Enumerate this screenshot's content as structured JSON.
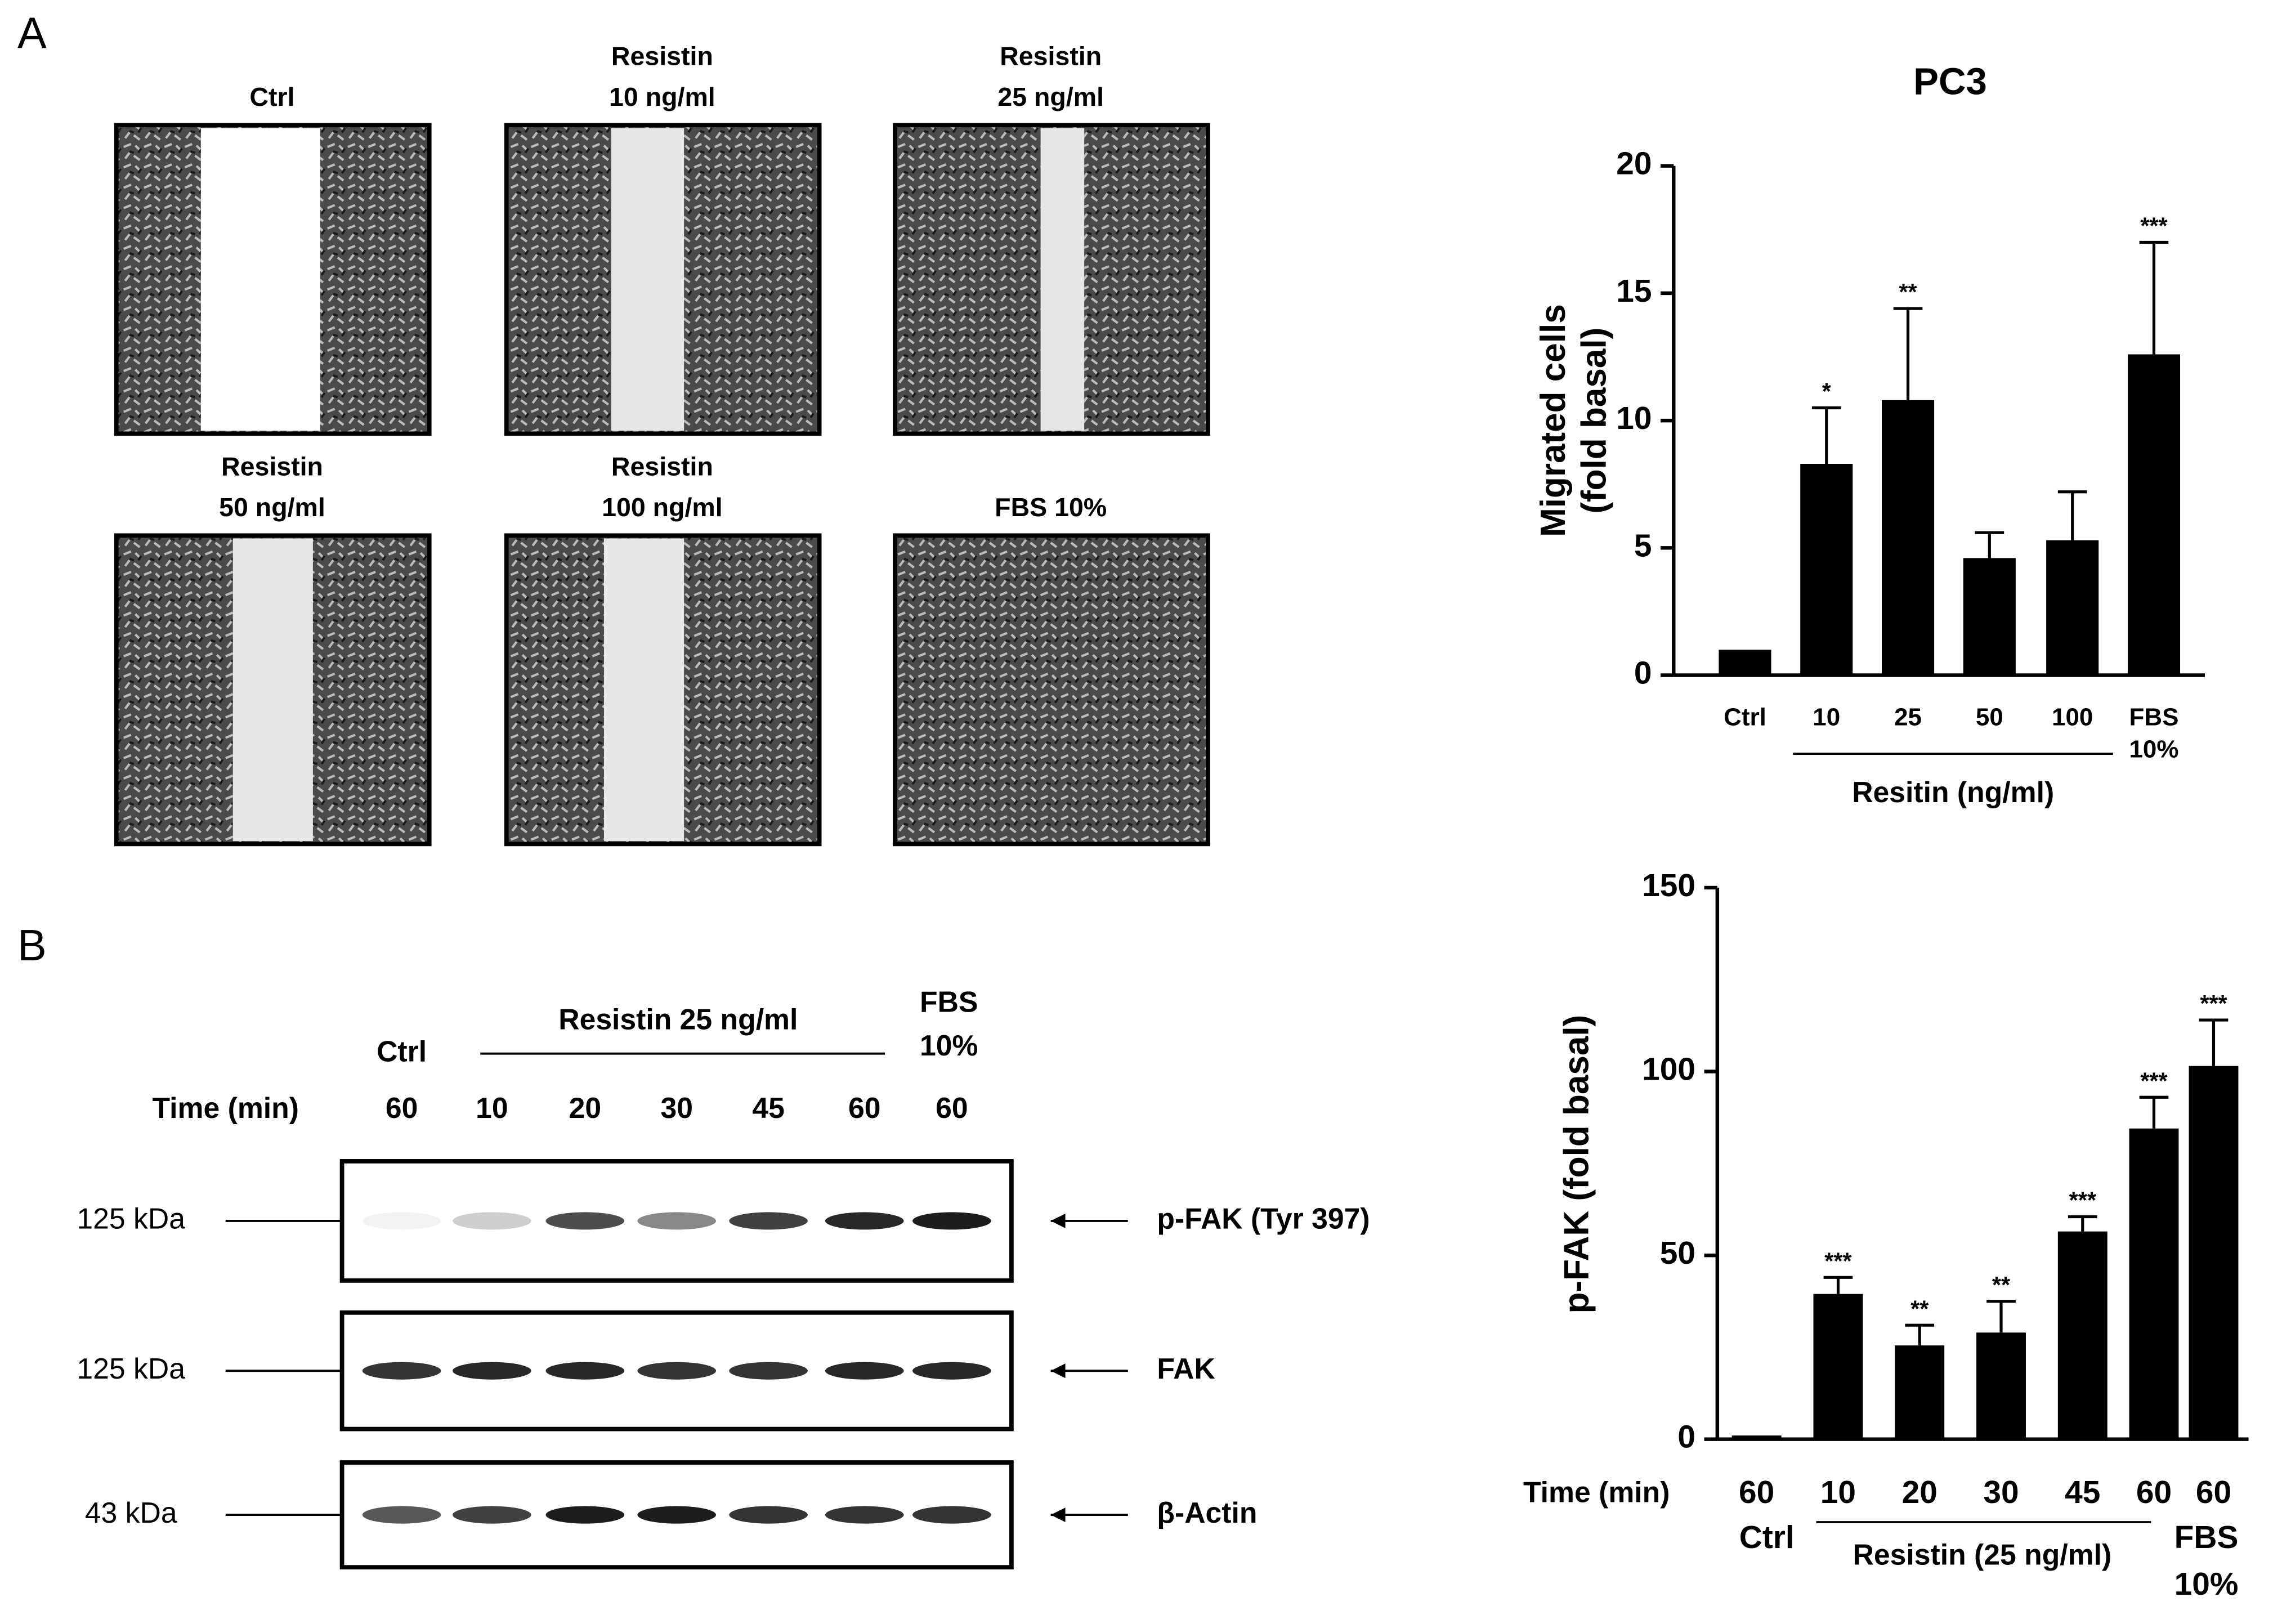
{
  "panels": [
    "A",
    "B"
  ],
  "micrographs": [
    [
      "Ctrl"
    ],
    [
      "Resistin",
      "10 ng/ml"
    ],
    [
      "Resistin",
      "25 ng/ml"
    ],
    [
      "Resistin",
      "50 ng/ml"
    ],
    [
      "Resistin",
      "100 ng/ml"
    ],
    [
      "FBS 10%"
    ]
  ],
  "blot": {
    "ctrl": "Ctrl",
    "treatment": "Resistin 25 ng/ml",
    "fbs": [
      "FBS",
      "10%"
    ],
    "time_label": "Time (min)",
    "times": [
      "60",
      "10",
      "20",
      "30",
      "45",
      "60",
      "60"
    ],
    "rows": [
      {
        "size": "125 kDa",
        "label": "p-FAK (Tyr 397)"
      },
      {
        "size": "125 kDa",
        "label": "FAK"
      },
      {
        "size": "43 kDa",
        "label": "β-Actin"
      }
    ]
  },
  "chart_data": [
    {
      "type": "bar",
      "title": "PC3",
      "ylabel": [
        "Migrated cells",
        "(fold basal)"
      ],
      "xlabel": "Resitin (ng/ml)",
      "categories": [
        "Ctrl",
        "10",
        "25",
        "50",
        "100",
        [
          "FBS",
          "10%"
        ]
      ],
      "values": [
        1,
        8.3,
        10.8,
        4.6,
        5.3,
        12.6
      ],
      "errors": [
        null,
        2.2,
        3.6,
        1.0,
        1.9,
        4.4
      ],
      "significance": [
        null,
        "*",
        "**",
        null,
        null,
        "***"
      ],
      "color": "#000000",
      "ylim": [
        0,
        20
      ],
      "yticks": [
        0,
        5,
        10,
        15,
        20
      ]
    },
    {
      "type": "bar",
      "ylabel": [
        "p-FAK (fold basal)"
      ],
      "x_prefix": "Time (min)",
      "categories": [
        "60",
        "10",
        "20",
        "30",
        "45",
        "60",
        "60"
      ],
      "group_labels": [
        [
          "Ctrl"
        ],
        [
          "Resistin (25 ng/ml)"
        ],
        [
          "FBS",
          "10%"
        ]
      ],
      "values": [
        1,
        39.5,
        25.5,
        29,
        56.5,
        84.5,
        101.5
      ],
      "errors": [
        null,
        4.5,
        5.5,
        8.5,
        4,
        8.5,
        12.5
      ],
      "significance": [
        null,
        "***",
        "**",
        "**",
        "***",
        "***",
        "***"
      ],
      "color": "#000000",
      "ylim": [
        0,
        150
      ],
      "yticks": [
        0,
        50,
        100,
        150
      ]
    }
  ]
}
